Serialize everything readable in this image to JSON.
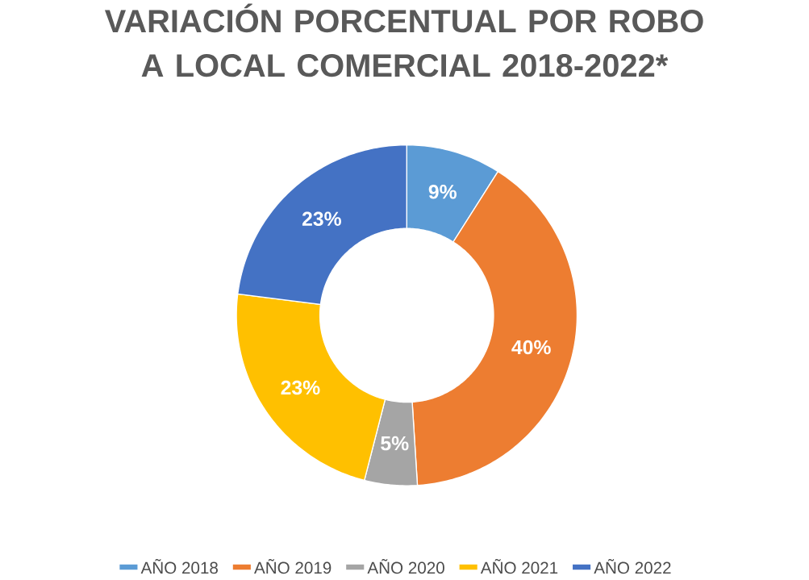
{
  "chart_data": {
    "type": "donut",
    "title": "VARIACIÓN PORCENTUAL POR  ROBO A LOCAL COMERCIAL 2018-2022*",
    "categories": [
      "AÑO 2018",
      "AÑO 2019",
      "AÑO 2020",
      "AÑO 2021",
      "AÑO 2022"
    ],
    "values": [
      9,
      40,
      5,
      23,
      23
    ],
    "value_labels": [
      "9%",
      "40%",
      "5%",
      "23%",
      "23%"
    ],
    "colors": [
      "#5b9bd5",
      "#ed7d31",
      "#a5a5a5",
      "#ffc000",
      "#4472c4"
    ],
    "legend": "bottom"
  }
}
